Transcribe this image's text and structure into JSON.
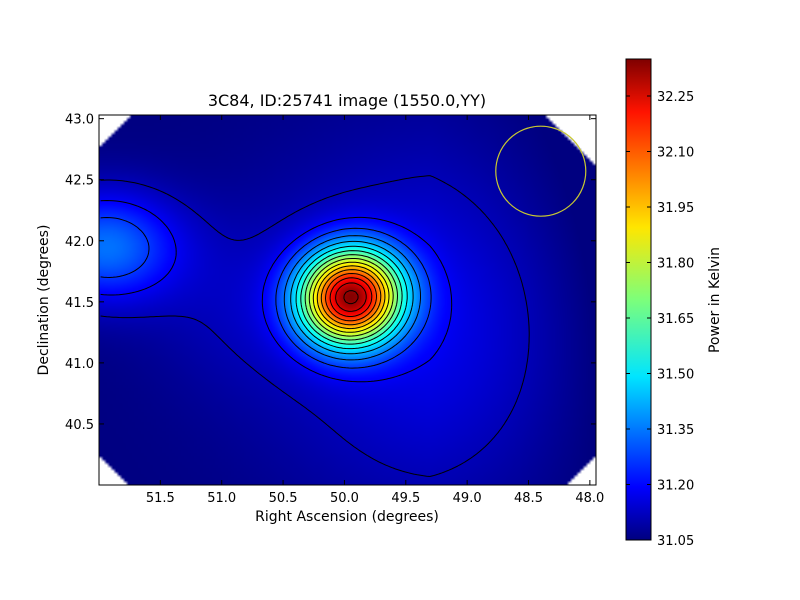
{
  "chart_data": {
    "type": "heatmap",
    "title": "3C84, ID:25741 image (1550.0,YY)",
    "xlabel": "Right Ascension (degrees)",
    "ylabel": "Declination (degrees)",
    "xlim": [
      52.0,
      47.95
    ],
    "ylim": [
      40.0,
      43.03
    ],
    "x_ticks": [
      51.5,
      51.0,
      50.5,
      50.0,
      49.5,
      49.0,
      48.5,
      48.0
    ],
    "x_tick_labels": [
      "51.5",
      "51.0",
      "50.5",
      "50.0",
      "49.5",
      "49.0",
      "48.5",
      "48.0"
    ],
    "y_ticks": [
      40.5,
      41.0,
      41.5,
      42.0,
      42.5,
      43.0
    ],
    "y_tick_labels": [
      "40.5",
      "41.0",
      "41.5",
      "42.0",
      "42.5",
      "43.0"
    ],
    "colorbar": {
      "label": "Power in Kelvin",
      "range": [
        31.05,
        32.35
      ],
      "ticks": [
        31.05,
        31.2,
        31.35,
        31.5,
        31.65,
        31.8,
        31.95,
        32.1,
        32.25
      ],
      "tick_labels": [
        "31.05",
        "31.20",
        "31.35",
        "31.50",
        "31.65",
        "31.80",
        "31.95",
        "32.10",
        "32.25"
      ],
      "colormap": "jet"
    },
    "peak": {
      "ra": 49.95,
      "dec": 41.54,
      "value": 32.34
    },
    "contours": "black",
    "beam_circle": {
      "ra": 48.4,
      "dec": 42.57,
      "color": "#c8c832"
    }
  }
}
